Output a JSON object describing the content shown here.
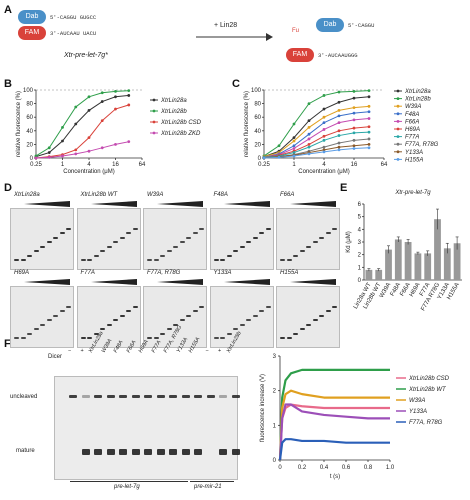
{
  "panel_labels": {
    "a": "A",
    "b": "B",
    "c": "C",
    "d": "D",
    "e": "E",
    "f": "F",
    "g": "G"
  },
  "panel_a": {
    "dab_label": "Dab",
    "fam_label": "FAM",
    "fu_label": "Fu",
    "arrow_label": "+ Lin28",
    "caption": "Xtr-pre-let-7g*",
    "seq_top": "5'-CAGGU    GUGCC",
    "seq_bottom": "3'-AUCAAU  UACU",
    "seq_right_top": "5'-CAGGU",
    "seq_right_bottom": "3'-AUCAAUGGG"
  },
  "chart_data": [
    {
      "id": "B",
      "type": "line",
      "xlabel": "Concentration (μM)",
      "ylabel": "relative fluorescence (%)",
      "x_ticks": [
        "0.25",
        "1",
        "4",
        "16",
        "64"
      ],
      "y_ticks": [
        "0",
        "20",
        "40",
        "60",
        "80",
        "100"
      ],
      "ylim": [
        0,
        100
      ],
      "x_log": true,
      "series": [
        {
          "name": "XtrLin28a",
          "color": "#333333",
          "x": [
            0.25,
            0.5,
            1,
            2,
            4,
            8,
            16,
            32
          ],
          "values": [
            2,
            8,
            25,
            50,
            70,
            83,
            90,
            92
          ]
        },
        {
          "name": "XtrLin28b",
          "color": "#2e9e4a",
          "x": [
            0.25,
            0.5,
            1,
            2,
            4,
            8,
            16,
            32
          ],
          "values": [
            3,
            15,
            45,
            75,
            90,
            96,
            98,
            99
          ]
        },
        {
          "name": "XtrLin28b CSD",
          "color": "#d9423a",
          "x": [
            0.25,
            0.5,
            1,
            2,
            4,
            8,
            16,
            32
          ],
          "values": [
            0,
            2,
            5,
            12,
            30,
            55,
            72,
            78
          ]
        },
        {
          "name": "XtrLin28b ZKD",
          "color": "#c44bb0",
          "x": [
            0.25,
            0.5,
            1,
            2,
            4,
            8,
            16,
            32
          ],
          "values": [
            0,
            1,
            3,
            6,
            10,
            15,
            20,
            24
          ]
        }
      ]
    },
    {
      "id": "C",
      "type": "line",
      "xlabel": "Concentration (μM)",
      "ylabel": "relative fluorescence (%)",
      "x_ticks": [
        "0.25",
        "1",
        "4",
        "16",
        "64"
      ],
      "y_ticks": [
        "0",
        "20",
        "40",
        "60",
        "80",
        "100"
      ],
      "ylim": [
        0,
        100
      ],
      "x_log": true,
      "series": [
        {
          "name": "XtrLin28a",
          "color": "#333333",
          "x": [
            0.25,
            0.5,
            1,
            2,
            4,
            8,
            16,
            32
          ],
          "values": [
            2,
            10,
            30,
            55,
            72,
            82,
            88,
            90
          ]
        },
        {
          "name": "XtrLin28b",
          "color": "#2e9e4a",
          "x": [
            0.25,
            0.5,
            1,
            2,
            4,
            8,
            16,
            32
          ],
          "values": [
            3,
            18,
            50,
            80,
            92,
            97,
            98,
            99
          ]
        },
        {
          "name": "W39A",
          "color": "#e0a020",
          "x": [
            0.25,
            0.5,
            1,
            2,
            4,
            8,
            16,
            32
          ],
          "values": [
            2,
            8,
            25,
            45,
            60,
            70,
            74,
            76
          ]
        },
        {
          "name": "F48A",
          "color": "#3a6fc9",
          "x": [
            0.25,
            0.5,
            1,
            2,
            4,
            8,
            16,
            32
          ],
          "values": [
            1,
            6,
            18,
            35,
            52,
            62,
            66,
            68
          ]
        },
        {
          "name": "F66A",
          "color": "#c44bb0",
          "x": [
            0.25,
            0.5,
            1,
            2,
            4,
            8,
            16,
            32
          ],
          "values": [
            1,
            5,
            14,
            28,
            42,
            52,
            56,
            58
          ]
        },
        {
          "name": "H69A",
          "color": "#d9423a",
          "x": [
            0.25,
            0.5,
            1,
            2,
            4,
            8,
            16,
            32
          ],
          "values": [
            1,
            4,
            10,
            20,
            32,
            40,
            44,
            46
          ]
        },
        {
          "name": "F77A",
          "color": "#2aa7a7",
          "x": [
            0.25,
            0.5,
            1,
            2,
            4,
            8,
            16,
            32
          ],
          "values": [
            1,
            3,
            8,
            16,
            26,
            33,
            37,
            38
          ]
        },
        {
          "name": "F77A, R78G",
          "color": "#777777",
          "x": [
            0.25,
            0.5,
            1,
            2,
            4,
            8,
            16,
            32
          ],
          "values": [
            0,
            2,
            5,
            10,
            16,
            22,
            26,
            28
          ]
        },
        {
          "name": "Y133A",
          "color": "#8a5a2b",
          "x": [
            0.25,
            0.5,
            1,
            2,
            4,
            8,
            16,
            32
          ],
          "values": [
            0,
            2,
            4,
            8,
            12,
            16,
            18,
            20
          ]
        },
        {
          "name": "H155A",
          "color": "#5c9ee6",
          "x": [
            0.25,
            0.5,
            1,
            2,
            4,
            8,
            16,
            32
          ],
          "values": [
            0,
            1,
            3,
            6,
            9,
            12,
            14,
            15
          ]
        }
      ]
    },
    {
      "id": "E",
      "type": "bar",
      "title": "Xtr-pre-let-7g",
      "ylabel": "Kd (μM)",
      "y_ticks": [
        "0",
        "1",
        "2",
        "3",
        "4",
        "5",
        "6"
      ],
      "ylim": [
        0,
        6
      ],
      "categories": [
        "Lin28a WT",
        "Lin28b WT",
        "W39A",
        "F48A",
        "F66A",
        "H69A",
        "F77A",
        "F77A R78G",
        "Y133A",
        "H155A"
      ],
      "values": [
        0.8,
        0.8,
        2.4,
        3.2,
        3.0,
        2.1,
        2.1,
        4.8,
        2.5,
        2.9
      ],
      "errors": [
        0.1,
        0.1,
        0.3,
        0.2,
        0.2,
        0.1,
        0.2,
        0.8,
        0.4,
        0.5
      ],
      "color": "#999999"
    },
    {
      "id": "G",
      "type": "line",
      "xlabel": "t (s)",
      "ylabel": "fluorescence increase (V)",
      "x_ticks": [
        "0",
        "0.2",
        "0.4",
        "0.6",
        "0.8",
        "1.0"
      ],
      "y_ticks": [
        "0",
        "1",
        "2",
        "3"
      ],
      "ylim": [
        0,
        3
      ],
      "xlim": [
        0,
        1
      ],
      "series": [
        {
          "name": "XtrLin28b CSD",
          "color": "#e86a8a",
          "x": [
            0,
            0.02,
            0.05,
            0.1,
            0.2,
            0.4,
            0.6,
            0.8,
            1.0
          ],
          "values": [
            0,
            1.2,
            1.5,
            1.6,
            1.55,
            1.5,
            1.5,
            1.5,
            1.5
          ]
        },
        {
          "name": "XtrLin28b WT",
          "color": "#2e9e4a",
          "x": [
            0,
            0.02,
            0.05,
            0.1,
            0.2,
            0.4,
            0.6,
            0.8,
            1.0
          ],
          "values": [
            0,
            1.8,
            2.3,
            2.5,
            2.6,
            2.6,
            2.6,
            2.6,
            2.6
          ]
        },
        {
          "name": "W39A",
          "color": "#e0a020",
          "x": [
            0,
            0.02,
            0.05,
            0.1,
            0.2,
            0.4,
            0.6,
            0.8,
            1.0
          ],
          "values": [
            0,
            1.5,
            1.9,
            2.0,
            1.9,
            1.8,
            1.8,
            1.8,
            1.8
          ]
        },
        {
          "name": "Y133A",
          "color": "#9c4fb8",
          "x": [
            0,
            0.02,
            0.05,
            0.1,
            0.2,
            0.4,
            0.6,
            0.8,
            1.0
          ],
          "values": [
            0,
            1.2,
            1.6,
            1.6,
            1.4,
            1.3,
            1.25,
            1.2,
            1.2
          ]
        },
        {
          "name": "F77A, R78G",
          "color": "#2a5fb8",
          "x": [
            0,
            0.02,
            0.05,
            0.1,
            0.2,
            0.4,
            0.6,
            0.8,
            1.0
          ],
          "values": [
            0,
            0.5,
            0.6,
            0.6,
            0.55,
            0.55,
            0.5,
            0.5,
            0.5
          ]
        }
      ]
    }
  ],
  "panel_d": {
    "gels": [
      {
        "title": "XtrLin28a"
      },
      {
        "title": "XtrLin28b WT"
      },
      {
        "title": "W39A"
      },
      {
        "title": "F48A"
      },
      {
        "title": "F66A"
      },
      {
        "title": "H69A"
      },
      {
        "title": "F77A"
      },
      {
        "title": "F77A, R78G"
      },
      {
        "title": "Y133A"
      },
      {
        "title": "H155A"
      }
    ]
  },
  "panel_f": {
    "dicer_label": "Dicer",
    "lanes": [
      "−",
      "+",
      "XtrLin28a",
      "W39A",
      "F48A",
      "F66A",
      "H69A",
      "F77A",
      "F77A, R78G",
      "Y133A",
      "H155A",
      "−",
      "+",
      "XtrLin28b"
    ],
    "row_uncleaved": "uncleaved",
    "row_mature": "mature",
    "bottom_left": "pre-let-7g",
    "bottom_right": "pre-mir-21"
  }
}
